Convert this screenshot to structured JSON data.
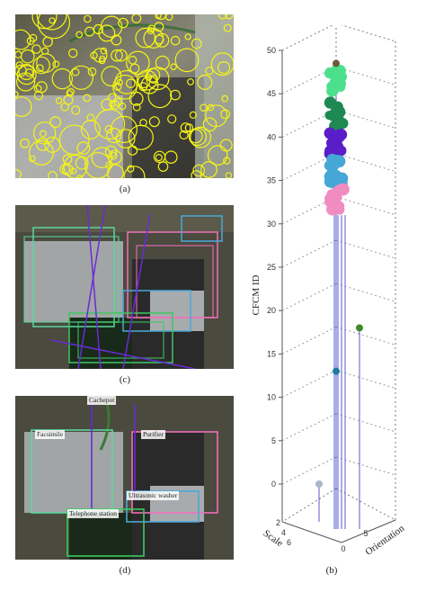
{
  "captions": {
    "a": "(a)",
    "b": "(b)",
    "c": "(c)",
    "d": "(d)"
  },
  "panel_d_labels": [
    {
      "id": "cachepot",
      "text": "Cachepot"
    },
    {
      "id": "facsimile",
      "text": "Facsimile"
    },
    {
      "id": "purifier",
      "text": "Purifier"
    },
    {
      "id": "ultrasonic",
      "text": "Ultrasonic washer"
    },
    {
      "id": "telephone",
      "text": "Telephone station"
    }
  ],
  "colors": {
    "keypoint": "#f5f514",
    "cachepot": "#6a2bd6",
    "facsimile": "#5bd6a0",
    "purifier": "#f070b8",
    "ultrasonic": "#4aa8d8",
    "telephone": "#3cc860",
    "stem": "#5a5ad0"
  },
  "chart_data": {
    "type": "scatter",
    "projection": "3d",
    "axes": {
      "z": {
        "label": "CFCM ID",
        "range": [
          0,
          50
        ],
        "ticks": [
          0,
          5,
          10,
          15,
          20,
          25,
          30,
          35,
          40,
          45,
          50
        ]
      },
      "scale": {
        "label": "Scale",
        "ticks": [
          2,
          4,
          6
        ]
      },
      "orientation": {
        "label": "Orientation",
        "ticks": [
          0,
          5
        ]
      }
    },
    "clusters": [
      {
        "z_range": [
          45,
          48
        ],
        "color": "#4de08c"
      },
      {
        "z_range": [
          40.5,
          44
        ],
        "color": "#1e8a52"
      },
      {
        "z_range": [
          38,
          40.5
        ],
        "color": "#5a1ec8"
      },
      {
        "z_range": [
          34.5,
          37.5
        ],
        "color": "#45a7d6"
      },
      {
        "z_range": [
          31.5,
          34
        ],
        "color": "#f08cc0"
      }
    ],
    "isolated_points": [
      {
        "z": 48.5,
        "color": "#6b5a3a"
      },
      {
        "z": 18,
        "color": "#3c8a28"
      },
      {
        "z": 13,
        "color": "#1e7aa0"
      },
      {
        "z": 0,
        "color": "#a8b8c8"
      }
    ]
  }
}
